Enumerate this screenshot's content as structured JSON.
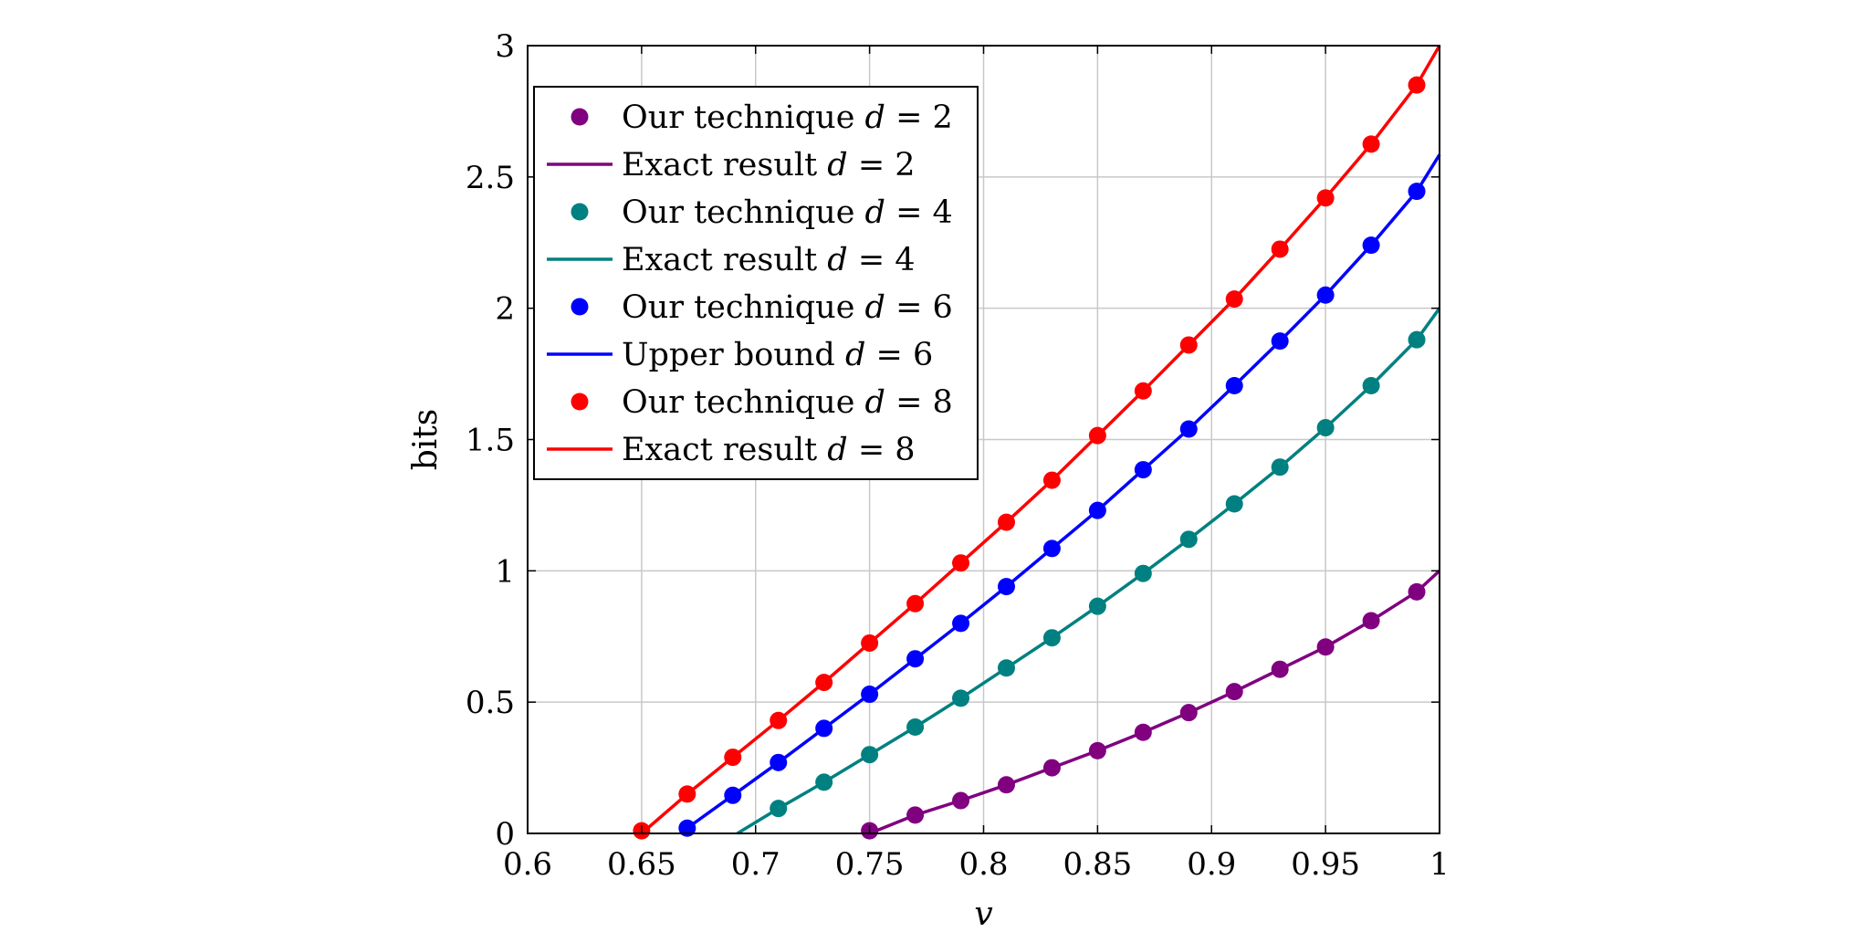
{
  "chart_data": {
    "type": "line",
    "title": "",
    "xlabel": "v",
    "ylabel": "bits",
    "xlim": [
      0.6,
      1.0
    ],
    "ylim": [
      0,
      3
    ],
    "xticks": [
      "0.6",
      "0.65",
      "0.7",
      "0.75",
      "0.8",
      "0.85",
      "0.9",
      "0.95",
      "1"
    ],
    "yticks": [
      "0",
      "0.5",
      "1",
      "1.5",
      "2",
      "2.5",
      "3"
    ],
    "grid": true,
    "legend_position": "top-left",
    "series": [
      {
        "name": "Our technique d = 2",
        "kind": "markers",
        "color": "#800080",
        "x": [
          0.75,
          0.77,
          0.79,
          0.81,
          0.83,
          0.85,
          0.87,
          0.89,
          0.91,
          0.93,
          0.95,
          0.97,
          0.99
        ],
        "y": [
          0.01,
          0.07,
          0.125,
          0.185,
          0.25,
          0.315,
          0.385,
          0.46,
          0.54,
          0.625,
          0.71,
          0.81,
          0.92
        ]
      },
      {
        "name": "Exact result d = 2",
        "kind": "line",
        "color": "#800080",
        "x": [
          0.75,
          0.77,
          0.79,
          0.81,
          0.83,
          0.85,
          0.87,
          0.89,
          0.91,
          0.93,
          0.95,
          0.97,
          0.99,
          1.0
        ],
        "y": [
          0.0,
          0.07,
          0.125,
          0.185,
          0.25,
          0.315,
          0.385,
          0.46,
          0.54,
          0.625,
          0.71,
          0.81,
          0.92,
          1.0
        ]
      },
      {
        "name": "Our technique d = 4",
        "kind": "markers",
        "color": "#008080",
        "x": [
          0.71,
          0.73,
          0.75,
          0.77,
          0.79,
          0.81,
          0.83,
          0.85,
          0.87,
          0.89,
          0.91,
          0.93,
          0.95,
          0.97,
          0.99
        ],
        "y": [
          0.095,
          0.195,
          0.3,
          0.405,
          0.515,
          0.63,
          0.745,
          0.865,
          0.99,
          1.12,
          1.255,
          1.395,
          1.545,
          1.705,
          1.88
        ]
      },
      {
        "name": "Exact result d = 4",
        "kind": "line",
        "color": "#008080",
        "x": [
          0.692,
          0.71,
          0.73,
          0.75,
          0.77,
          0.79,
          0.81,
          0.83,
          0.85,
          0.87,
          0.89,
          0.91,
          0.93,
          0.95,
          0.97,
          0.99,
          1.0
        ],
        "y": [
          0.0,
          0.095,
          0.195,
          0.3,
          0.405,
          0.515,
          0.63,
          0.745,
          0.865,
          0.99,
          1.12,
          1.255,
          1.395,
          1.545,
          1.705,
          1.88,
          2.0
        ]
      },
      {
        "name": "Our technique d = 6",
        "kind": "markers",
        "color": "#0000ff",
        "x": [
          0.67,
          0.69,
          0.71,
          0.73,
          0.75,
          0.77,
          0.79,
          0.81,
          0.83,
          0.85,
          0.87,
          0.89,
          0.91,
          0.93,
          0.95,
          0.97,
          0.99
        ],
        "y": [
          0.02,
          0.145,
          0.27,
          0.4,
          0.53,
          0.665,
          0.8,
          0.94,
          1.085,
          1.23,
          1.385,
          1.54,
          1.705,
          1.875,
          2.05,
          2.24,
          2.445
        ]
      },
      {
        "name": "Upper bound d = 6",
        "kind": "line",
        "color": "#0000ff",
        "x": [
          0.667,
          0.67,
          0.69,
          0.71,
          0.73,
          0.75,
          0.77,
          0.79,
          0.81,
          0.83,
          0.85,
          0.87,
          0.89,
          0.91,
          0.93,
          0.95,
          0.97,
          0.99,
          1.0
        ],
        "y": [
          0.0,
          0.02,
          0.145,
          0.27,
          0.4,
          0.53,
          0.665,
          0.8,
          0.94,
          1.085,
          1.23,
          1.385,
          1.54,
          1.705,
          1.875,
          2.05,
          2.24,
          2.445,
          2.585
        ]
      },
      {
        "name": "Our technique d = 8",
        "kind": "markers",
        "color": "#ff0000",
        "x": [
          0.65,
          0.67,
          0.69,
          0.71,
          0.73,
          0.75,
          0.77,
          0.79,
          0.81,
          0.83,
          0.85,
          0.87,
          0.89,
          0.91,
          0.93,
          0.95,
          0.97,
          0.99
        ],
        "y": [
          0.01,
          0.15,
          0.29,
          0.43,
          0.575,
          0.725,
          0.875,
          1.03,
          1.185,
          1.345,
          1.515,
          1.685,
          1.86,
          2.035,
          2.225,
          2.42,
          2.625,
          2.85
        ]
      },
      {
        "name": "Exact result d = 8",
        "kind": "line",
        "color": "#ff0000",
        "x": [
          0.65,
          0.67,
          0.69,
          0.71,
          0.73,
          0.75,
          0.77,
          0.79,
          0.81,
          0.83,
          0.85,
          0.87,
          0.89,
          0.91,
          0.93,
          0.95,
          0.97,
          0.99,
          1.0
        ],
        "y": [
          0.0,
          0.15,
          0.29,
          0.43,
          0.575,
          0.725,
          0.875,
          1.03,
          1.185,
          1.345,
          1.515,
          1.685,
          1.86,
          2.035,
          2.225,
          2.42,
          2.625,
          2.85,
          3.0
        ]
      }
    ]
  },
  "legend": {
    "entries": [
      {
        "text": "Our technique ",
        "var": "d",
        "eq": " = 2",
        "kind": "markers",
        "color": "#800080"
      },
      {
        "text": "Exact result ",
        "var": "d",
        "eq": " = 2",
        "kind": "line",
        "color": "#800080"
      },
      {
        "text": "Our technique ",
        "var": "d",
        "eq": " = 4",
        "kind": "markers",
        "color": "#008080"
      },
      {
        "text": "Exact result ",
        "var": "d",
        "eq": " = 4",
        "kind": "line",
        "color": "#008080"
      },
      {
        "text": "Our technique ",
        "var": "d",
        "eq": " = 6",
        "kind": "markers",
        "color": "#0000ff"
      },
      {
        "text": "Upper bound ",
        "var": "d",
        "eq": " = 6",
        "kind": "line",
        "color": "#0000ff"
      },
      {
        "text": "Our technique ",
        "var": "d",
        "eq": " = 8",
        "kind": "markers",
        "color": "#ff0000"
      },
      {
        "text": "Exact result ",
        "var": "d",
        "eq": " = 8",
        "kind": "line",
        "color": "#ff0000"
      }
    ]
  }
}
